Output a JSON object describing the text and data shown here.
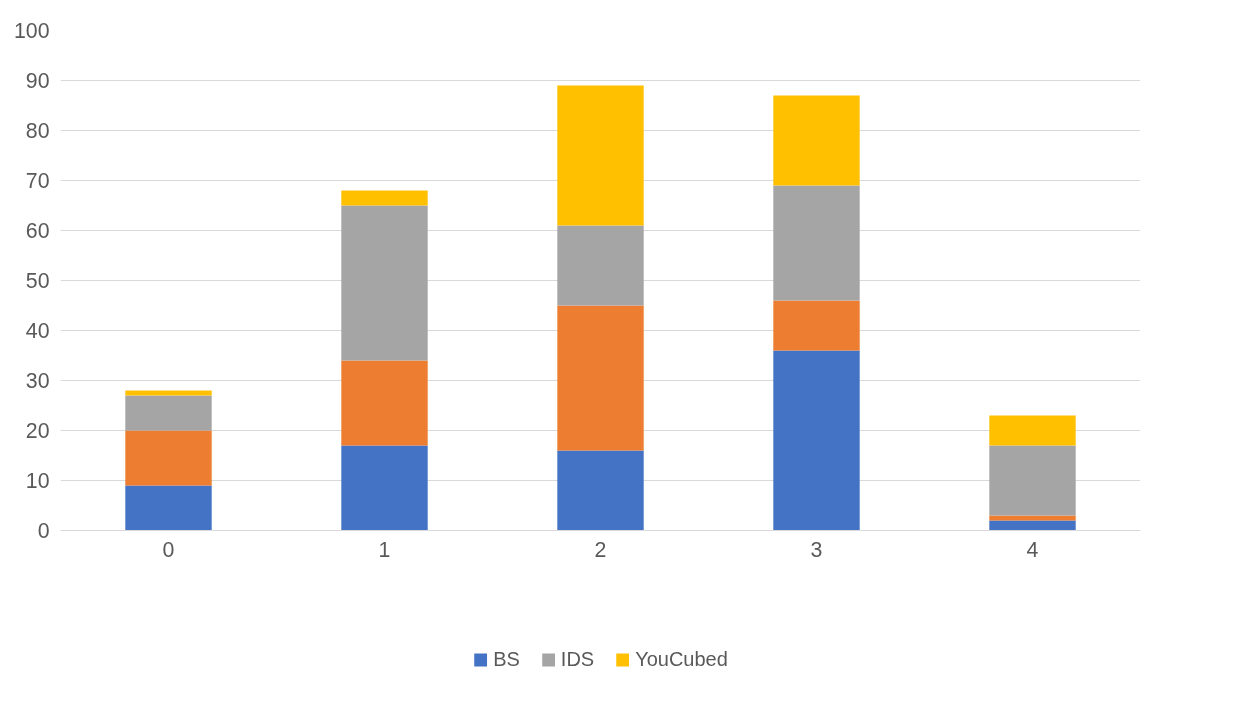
{
  "chart_data": {
    "type": "bar",
    "stacked": true,
    "categories": [
      "0",
      "1",
      "2",
      "3",
      "4"
    ],
    "series": [
      {
        "name": "BS",
        "color": "#4472c4",
        "values": [
          9,
          17,
          16,
          36,
          2
        ]
      },
      {
        "color": "#ed7d31",
        "values": [
          11,
          17,
          29,
          10,
          1
        ]
      },
      {
        "name": "IDS",
        "color": "#a5a5a5",
        "values": [
          7,
          31,
          16,
          23,
          14
        ]
      },
      {
        "name": "YouCubed",
        "color": "#ffc000",
        "values": [
          1,
          3,
          28,
          18,
          6
        ]
      }
    ],
    "ylim": [
      0,
      100
    ],
    "yticks": [
      0,
      10,
      20,
      30,
      40,
      50,
      60,
      70,
      80,
      90,
      100
    ],
    "grid": "y",
    "legend": "bottom"
  }
}
